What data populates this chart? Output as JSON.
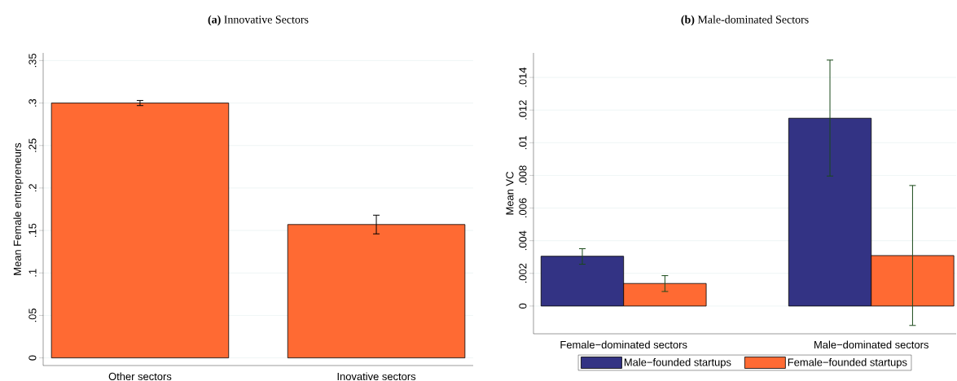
{
  "chart_data": [
    {
      "type": "bar",
      "title": "**(a)** Innovative Sectors",
      "ylabel": "Mean Female entrepreneurs",
      "categories": [
        "Other sectors",
        "Inovative sectors"
      ],
      "values": [
        0.3,
        0.157
      ],
      "errors": [
        [
          0.297,
          0.303
        ],
        [
          0.146,
          0.168
        ]
      ],
      "color": "#ff6a33",
      "ylim": [
        -0.009,
        0.359
      ],
      "yticks": [
        0,
        {
          "value": 0.05,
          "label": ".05"
        },
        {
          "value": 0.1,
          "label": ".1"
        },
        {
          "value": 0.15,
          "label": ".15"
        },
        {
          "value": 0.2,
          "label": ".2"
        },
        {
          "value": 0.25,
          "label": ".25"
        },
        {
          "value": 0.3,
          "label": ".3"
        },
        {
          "value": 0.35,
          "label": ".35"
        }
      ],
      "grid": "y",
      "legend": false
    },
    {
      "type": "bar",
      "title": "**(b)** Male-dominated Sectors",
      "ylabel": "Mean VC",
      "categories": [
        "Female−dominated sectors",
        "Male−dominated  sectors"
      ],
      "series": [
        {
          "name": "Male−founded startups",
          "color": "#333384",
          "values": [
            0.00305,
            0.0115
          ],
          "errors": [
            [
              0.00256,
              0.00351
            ],
            [
              0.00796,
              0.01506
            ]
          ]
        },
        {
          "name": "Female−founded startups",
          "color": "#ff6a33",
          "values": [
            0.00138,
            0.00309
          ],
          "errors": [
            [
              0.00089,
              0.00186
            ],
            [
              -0.00119,
              0.00738
            ]
          ]
        }
      ],
      "ylim": [
        -0.0017,
        0.0155
      ],
      "yticks": [
        0,
        {
          "value": 0.002,
          "label": ".002"
        },
        {
          "value": 0.004,
          "label": ".004"
        },
        {
          "value": 0.006,
          "label": ".006"
        },
        {
          "value": 0.008,
          "label": ".008"
        },
        {
          "value": 0.01,
          "label": ".01"
        },
        {
          "value": 0.012,
          "label": ".012"
        },
        {
          "value": 0.014,
          "label": ".014"
        }
      ],
      "grid": "y",
      "legend": "bottom"
    }
  ]
}
